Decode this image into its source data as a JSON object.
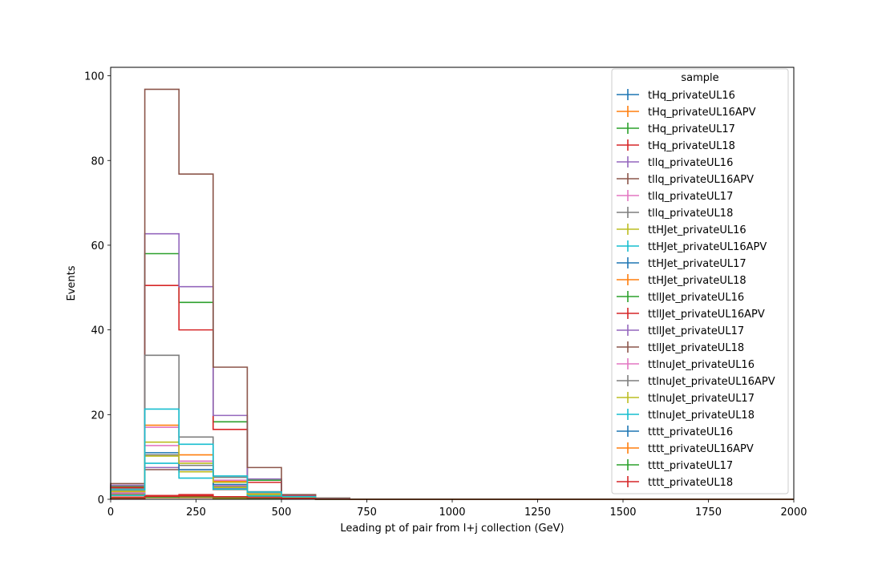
{
  "chart_data": {
    "type": "step",
    "xlabel": "Leading pt of pair from l+j collection (GeV)",
    "ylabel": "Events",
    "xlim": [
      0,
      2000
    ],
    "ylim": [
      0,
      102
    ],
    "xticks": [
      0,
      250,
      500,
      750,
      1000,
      1250,
      1500,
      1750,
      2000
    ],
    "yticks": [
      0,
      20,
      40,
      60,
      80,
      100
    ],
    "bin_edges": [
      0,
      100,
      200,
      300,
      400,
      500,
      600,
      700,
      800,
      900,
      1000,
      1100,
      1200,
      1300,
      1400,
      1500,
      1600,
      1700,
      1800,
      1900,
      2000
    ],
    "legend_title": "sample",
    "legend_position": "top-right",
    "grid": false,
    "series": [
      {
        "name": "tHq_privateUL16",
        "color": "#1f77b4",
        "values": [
          0.3,
          0.5,
          0.4,
          0.2,
          0.1,
          0.05,
          0.02,
          0,
          0,
          0,
          0,
          0,
          0,
          0,
          0,
          0,
          0,
          0,
          0,
          0
        ]
      },
      {
        "name": "tHq_privateUL16APV",
        "color": "#ff7f0e",
        "values": [
          0.3,
          0.5,
          0.4,
          0.2,
          0.1,
          0.05,
          0.02,
          0,
          0,
          0,
          0,
          0,
          0,
          0,
          0,
          0,
          0,
          0,
          0,
          0
        ]
      },
      {
        "name": "tHq_privateUL17",
        "color": "#2ca02c",
        "values": [
          0.4,
          0.7,
          0.6,
          0.3,
          0.1,
          0.05,
          0.02,
          0,
          0,
          0,
          0,
          0,
          0,
          0,
          0,
          0,
          0,
          0,
          0,
          0
        ]
      },
      {
        "name": "tHq_privateUL18",
        "color": "#d62728",
        "values": [
          0.5,
          0.9,
          1.1,
          0.5,
          0.2,
          0.1,
          0.03,
          0,
          0,
          0,
          0,
          0,
          0,
          0,
          0,
          0,
          0,
          0,
          0,
          0
        ]
      },
      {
        "name": "tllq_privateUL16",
        "color": "#9467bd",
        "values": [
          1.2,
          7.5,
          7.0,
          2.5,
          0.8,
          0.3,
          0.1,
          0,
          0,
          0,
          0,
          0,
          0,
          0,
          0,
          0,
          0,
          0,
          0,
          0
        ]
      },
      {
        "name": "tllq_privateUL16APV",
        "color": "#8c564b",
        "values": [
          1.1,
          7.0,
          6.5,
          2.3,
          0.7,
          0.3,
          0.1,
          0,
          0,
          0,
          0,
          0,
          0,
          0,
          0,
          0,
          0,
          0,
          0,
          0
        ]
      },
      {
        "name": "tllq_privateUL17",
        "color": "#e377c2",
        "values": [
          1.6,
          12.7,
          9.0,
          3.2,
          1.1,
          0.4,
          0.1,
          0,
          0,
          0,
          0,
          0,
          0,
          0,
          0,
          0,
          0,
          0,
          0,
          0
        ]
      },
      {
        "name": "tllq_privateUL18",
        "color": "#7f7f7f",
        "values": [
          2.0,
          10.5,
          8.0,
          3.0,
          1.0,
          0.4,
          0.1,
          0,
          0,
          0,
          0,
          0,
          0,
          0,
          0,
          0,
          0,
          0,
          0,
          0
        ]
      },
      {
        "name": "ttHJet_privateUL16",
        "color": "#bcbd22",
        "values": [
          1.0,
          10.2,
          6.5,
          2.8,
          1.0,
          0.4,
          0.1,
          0,
          0,
          0,
          0,
          0,
          0,
          0,
          0,
          0,
          0,
          0,
          0,
          0
        ]
      },
      {
        "name": "ttHJet_privateUL16APV",
        "color": "#17becf",
        "values": [
          0.9,
          8.5,
          5.0,
          2.4,
          0.8,
          0.3,
          0.1,
          0,
          0,
          0,
          0,
          0,
          0,
          0,
          0,
          0,
          0,
          0,
          0,
          0
        ]
      },
      {
        "name": "ttHJet_privateUL17",
        "color": "#1f77b4",
        "values": [
          1.5,
          11.0,
          7.0,
          3.5,
          1.3,
          0.5,
          0.2,
          0,
          0,
          0,
          0,
          0,
          0,
          0,
          0,
          0,
          0,
          0,
          0,
          0
        ]
      },
      {
        "name": "ttHJet_privateUL18",
        "color": "#ff7f0e",
        "values": [
          2.0,
          17.5,
          10.5,
          4.2,
          1.6,
          0.6,
          0.2,
          0,
          0,
          0,
          0,
          0,
          0,
          0,
          0,
          0,
          0,
          0,
          0,
          0
        ]
      },
      {
        "name": "ttllJet_privateUL16",
        "color": "#2ca02c",
        "values": [
          3.0,
          58.0,
          46.5,
          18.3,
          4.5,
          1.0,
          0.2,
          0,
          0,
          0,
          0,
          0,
          0,
          0,
          0,
          0,
          0,
          0,
          0,
          0
        ]
      },
      {
        "name": "ttllJet_privateUL16APV",
        "color": "#d62728",
        "values": [
          2.8,
          50.5,
          40.0,
          16.5,
          4.0,
          0.9,
          0.2,
          0,
          0,
          0,
          0,
          0,
          0,
          0,
          0,
          0,
          0,
          0,
          0,
          0
        ]
      },
      {
        "name": "ttllJet_privateUL17",
        "color": "#9467bd",
        "values": [
          3.3,
          62.7,
          50.2,
          19.8,
          4.8,
          1.0,
          0.2,
          0,
          0,
          0,
          0,
          0,
          0,
          0,
          0,
          0,
          0,
          0,
          0,
          0
        ]
      },
      {
        "name": "ttllJet_privateUL18",
        "color": "#8c564b",
        "values": [
          3.7,
          96.8,
          76.8,
          31.2,
          7.5,
          1.1,
          0.3,
          0,
          0,
          0,
          0,
          0,
          0,
          0,
          0,
          0,
          0,
          0,
          0,
          0
        ]
      },
      {
        "name": "ttlnuJet_privateUL16",
        "color": "#e377c2",
        "values": [
          1.5,
          17.0,
          9.0,
          4.5,
          1.4,
          0.5,
          0.1,
          0,
          0,
          0,
          0,
          0,
          0,
          0,
          0,
          0,
          0,
          0,
          0,
          0
        ]
      },
      {
        "name": "ttlnuJet_privateUL16APV",
        "color": "#7f7f7f",
        "values": [
          2.5,
          34.0,
          14.7,
          5.2,
          1.8,
          0.6,
          0.2,
          0,
          0,
          0,
          0,
          0,
          0,
          0,
          0,
          0,
          0,
          0,
          0,
          0
        ]
      },
      {
        "name": "ttlnuJet_privateUL17",
        "color": "#bcbd22",
        "values": [
          1.8,
          13.5,
          8.5,
          4.0,
          1.3,
          0.5,
          0.1,
          0,
          0,
          0,
          0,
          0,
          0,
          0,
          0,
          0,
          0,
          0,
          0,
          0
        ]
      },
      {
        "name": "ttlnuJet_privateUL18",
        "color": "#17becf",
        "values": [
          2.2,
          21.3,
          13.0,
          5.5,
          1.7,
          0.6,
          0.2,
          0,
          0,
          0,
          0,
          0,
          0,
          0,
          0,
          0,
          0,
          0,
          0,
          0
        ]
      },
      {
        "name": "tttt_privateUL16",
        "color": "#1f77b4",
        "values": [
          0.05,
          0.4,
          0.5,
          0.4,
          0.3,
          0.2,
          0.1,
          0,
          0,
          0,
          0,
          0,
          0,
          0,
          0,
          0,
          0,
          0,
          0,
          0
        ]
      },
      {
        "name": "tttt_privateUL16APV",
        "color": "#ff7f0e",
        "values": [
          0.05,
          0.4,
          0.5,
          0.4,
          0.3,
          0.2,
          0.1,
          0,
          0,
          0,
          0,
          0,
          0,
          0,
          0,
          0,
          0,
          0,
          0,
          0
        ]
      },
      {
        "name": "tttt_privateUL17",
        "color": "#2ca02c",
        "values": [
          0.05,
          0.5,
          0.6,
          0.5,
          0.3,
          0.2,
          0.1,
          0,
          0,
          0,
          0,
          0,
          0,
          0,
          0,
          0,
          0,
          0,
          0,
          0
        ]
      },
      {
        "name": "tttt_privateUL18",
        "color": "#d62728",
        "values": [
          0.1,
          0.7,
          0.8,
          0.6,
          0.4,
          0.2,
          0.1,
          0,
          0,
          0,
          0,
          0,
          0,
          0,
          0,
          0,
          0,
          0,
          0,
          0
        ]
      }
    ]
  }
}
